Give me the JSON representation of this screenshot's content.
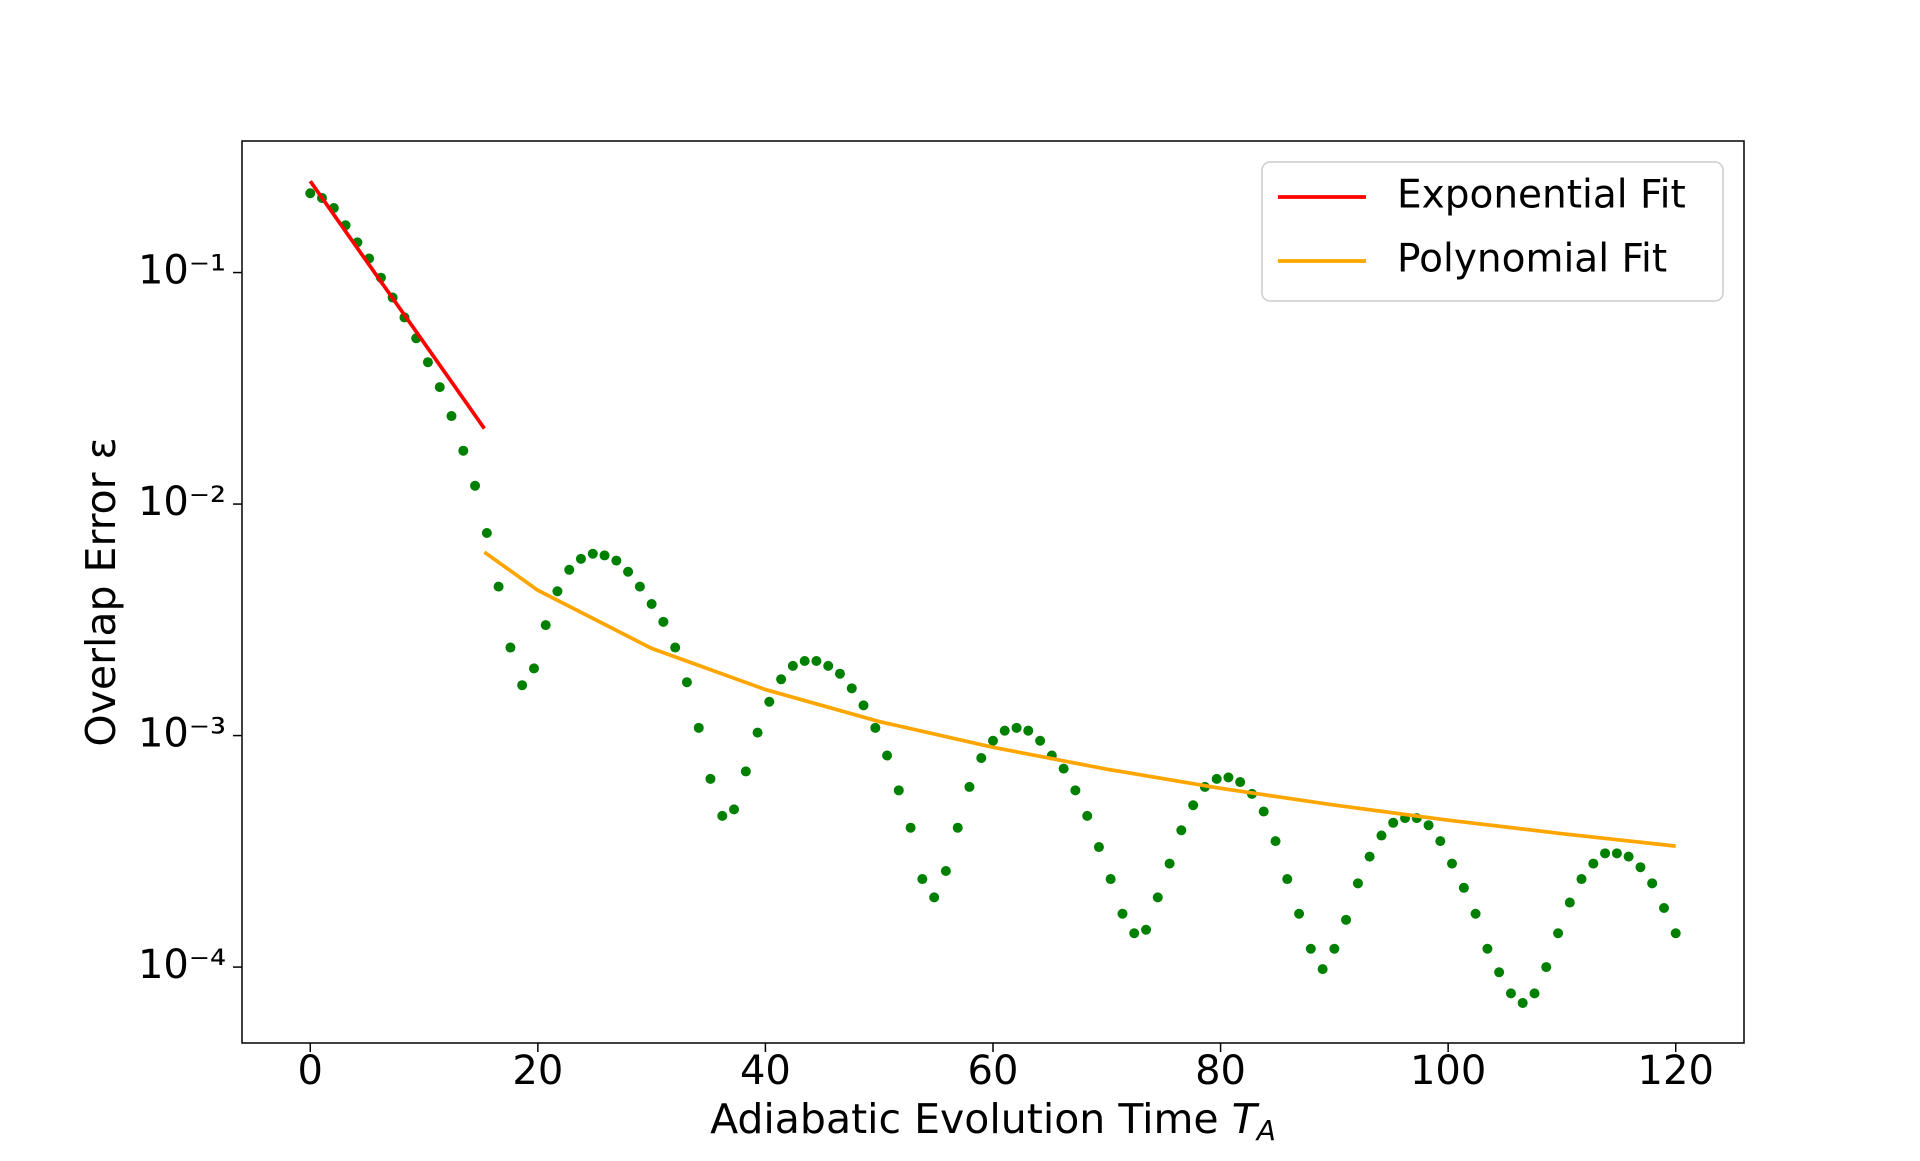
{
  "chart_data": {
    "type": "scatter",
    "xlabel": "Adiabatic Evolution Time",
    "xlabel_symbol": "T",
    "xlabel_subscript": "A",
    "ylabel": "Overlap Error ε",
    "xlim": [
      -6,
      126
    ],
    "xticks": [
      0,
      20,
      40,
      60,
      80,
      100,
      120
    ],
    "ylim": [
      4.7e-05,
      0.37
    ],
    "log_y": true,
    "yticks": [
      {
        "value": 0.0001,
        "label": "10⁻⁴"
      },
      {
        "value": 0.001,
        "label": "10⁻³"
      },
      {
        "value": 0.01,
        "label": "10⁻²"
      },
      {
        "value": 0.1,
        "label": "10⁻¹"
      }
    ],
    "legend": "upper right",
    "series": [
      {
        "type": "scatter",
        "color": "#008000",
        "x": [
          0,
          1.03,
          2.07,
          3.1,
          4.14,
          5.17,
          6.21,
          7.24,
          8.28,
          9.31,
          10.34,
          11.38,
          12.41,
          13.45,
          14.48,
          15.52,
          16.55,
          17.59,
          18.62,
          19.66,
          20.69,
          21.72,
          22.76,
          23.79,
          24.83,
          25.86,
          26.9,
          27.93,
          28.97,
          30,
          31.03,
          32.07,
          33.1,
          34.14,
          35.17,
          36.21,
          37.24,
          38.28,
          39.31,
          40.34,
          41.38,
          42.41,
          43.45,
          44.48,
          45.52,
          46.55,
          47.59,
          48.62,
          49.66,
          50.69,
          51.72,
          52.76,
          53.79,
          54.83,
          55.86,
          56.9,
          57.93,
          58.97,
          60,
          61.03,
          62.07,
          63.1,
          64.14,
          65.17,
          66.21,
          67.24,
          68.28,
          69.31,
          70.34,
          71.38,
          72.41,
          73.45,
          74.48,
          75.52,
          76.55,
          77.59,
          78.62,
          79.66,
          80.69,
          81.72,
          82.76,
          83.79,
          84.83,
          85.86,
          86.9,
          87.93,
          88.97,
          90,
          91.03,
          92.07,
          93.1,
          94.14,
          95.17,
          96.21,
          97.24,
          98.28,
          99.31,
          100.34,
          101.38,
          102.41,
          103.45,
          104.48,
          105.52,
          106.55,
          107.59,
          108.62,
          109.66,
          110.69,
          111.72,
          112.76,
          113.79,
          114.83,
          115.86,
          116.9,
          117.93,
          118.97,
          120
        ],
        "values": [
          0.22,
          0.21,
          0.19,
          0.16,
          0.135,
          0.115,
          0.095,
          0.078,
          0.064,
          0.052,
          0.041,
          0.032,
          0.024,
          0.017,
          0.012,
          0.0075,
          0.0044,
          0.0024,
          0.00165,
          0.00195,
          0.003,
          0.0042,
          0.0052,
          0.0058,
          0.0061,
          0.006,
          0.0057,
          0.0051,
          0.0044,
          0.0037,
          0.0031,
          0.0024,
          0.0017,
          0.00108,
          0.00065,
          0.00045,
          0.00048,
          0.0007,
          0.00103,
          0.0014,
          0.00175,
          0.002,
          0.0021,
          0.0021,
          0.002,
          0.00185,
          0.0016,
          0.00135,
          0.00108,
          0.00082,
          0.00058,
          0.0004,
          0.00024,
          0.0002,
          0.00026,
          0.0004,
          0.0006,
          0.0008,
          0.00095,
          0.00105,
          0.00108,
          0.00105,
          0.00095,
          0.00082,
          0.00072,
          0.00058,
          0.00045,
          0.00033,
          0.00024,
          0.00017,
          0.00014,
          0.000145,
          0.0002,
          0.00028,
          0.00039,
          0.0005,
          0.0006,
          0.00065,
          0.00066,
          0.00063,
          0.00056,
          0.00047,
          0.00035,
          0.00024,
          0.00017,
          0.00012,
          9.8e-05,
          0.00012,
          0.00016,
          0.00023,
          0.0003,
          0.00037,
          0.00042,
          0.00044,
          0.00044,
          0.00041,
          0.00035,
          0.00028,
          0.00022,
          0.00017,
          0.00012,
          9.5e-05,
          7.7e-05,
          7e-05,
          7.7e-05,
          0.0001,
          0.00014,
          0.00019,
          0.00024,
          0.00028,
          0.00031,
          0.00031,
          0.0003,
          0.00027,
          0.00023,
          0.00018,
          0.00014
        ]
      },
      {
        "type": "line",
        "name": "Exponential Fit",
        "color": "#ff0000",
        "x": [
          0,
          15.3
        ],
        "values": [
          0.248,
          0.0212
        ]
      },
      {
        "type": "line",
        "name": "Polynomial Fit",
        "color": "#ffa500",
        "x": [
          15.3,
          20,
          30,
          40,
          50,
          60,
          70,
          80,
          90,
          100,
          110,
          120
        ],
        "values": [
          0.0062,
          0.00424,
          0.00238,
          0.00158,
          0.00115,
          0.00089,
          0.000716,
          0.000592,
          0.000501,
          0.000431,
          0.000377,
          0.000333
        ]
      }
    ]
  }
}
